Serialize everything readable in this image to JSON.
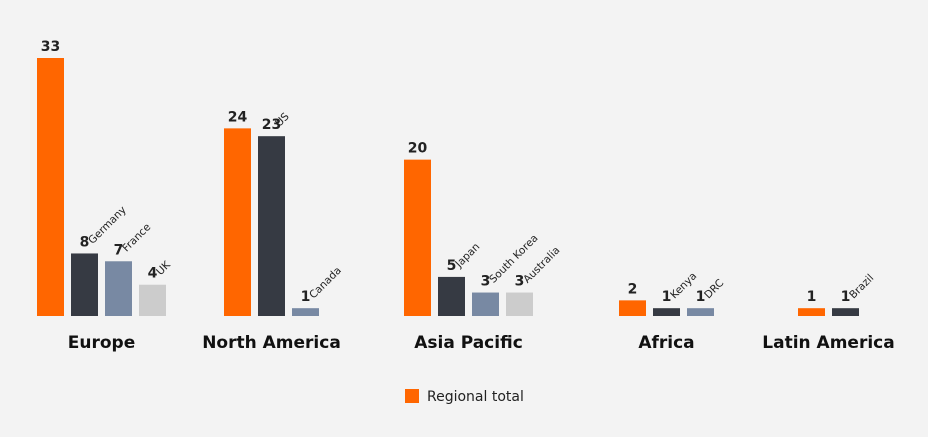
{
  "chart_data": {
    "type": "bar",
    "grid": false,
    "legend_position": "bottom-center",
    "legend": [
      {
        "label": "Regional total",
        "color": "#ff6600"
      }
    ],
    "colors": {
      "total": "#ff6600",
      "first": "#363a43",
      "second": "#7889a3",
      "third": "#cccccc"
    },
    "groups": [
      {
        "name": "Europe",
        "total": 33,
        "countries": [
          {
            "name": "Germany",
            "value": 8
          },
          {
            "name": "France",
            "value": 7
          },
          {
            "name": "UK",
            "value": 4
          }
        ]
      },
      {
        "name": "North America",
        "total": 24,
        "countries": [
          {
            "name": "US",
            "value": 23
          },
          {
            "name": "Canada",
            "value": 1
          }
        ]
      },
      {
        "name": "Asia Pacific",
        "total": 20,
        "countries": [
          {
            "name": "Japan",
            "value": 5
          },
          {
            "name": "South Korea",
            "value": 3
          },
          {
            "name": "Australia",
            "value": 3
          }
        ]
      },
      {
        "name": "Africa",
        "total": 2,
        "countries": [
          {
            "name": "Kenya",
            "value": 1
          },
          {
            "name": "DRC",
            "value": 1
          }
        ]
      },
      {
        "name": "Latin America",
        "total": 1,
        "countries": [
          {
            "name": "Brazil",
            "value": 1
          }
        ]
      }
    ]
  }
}
